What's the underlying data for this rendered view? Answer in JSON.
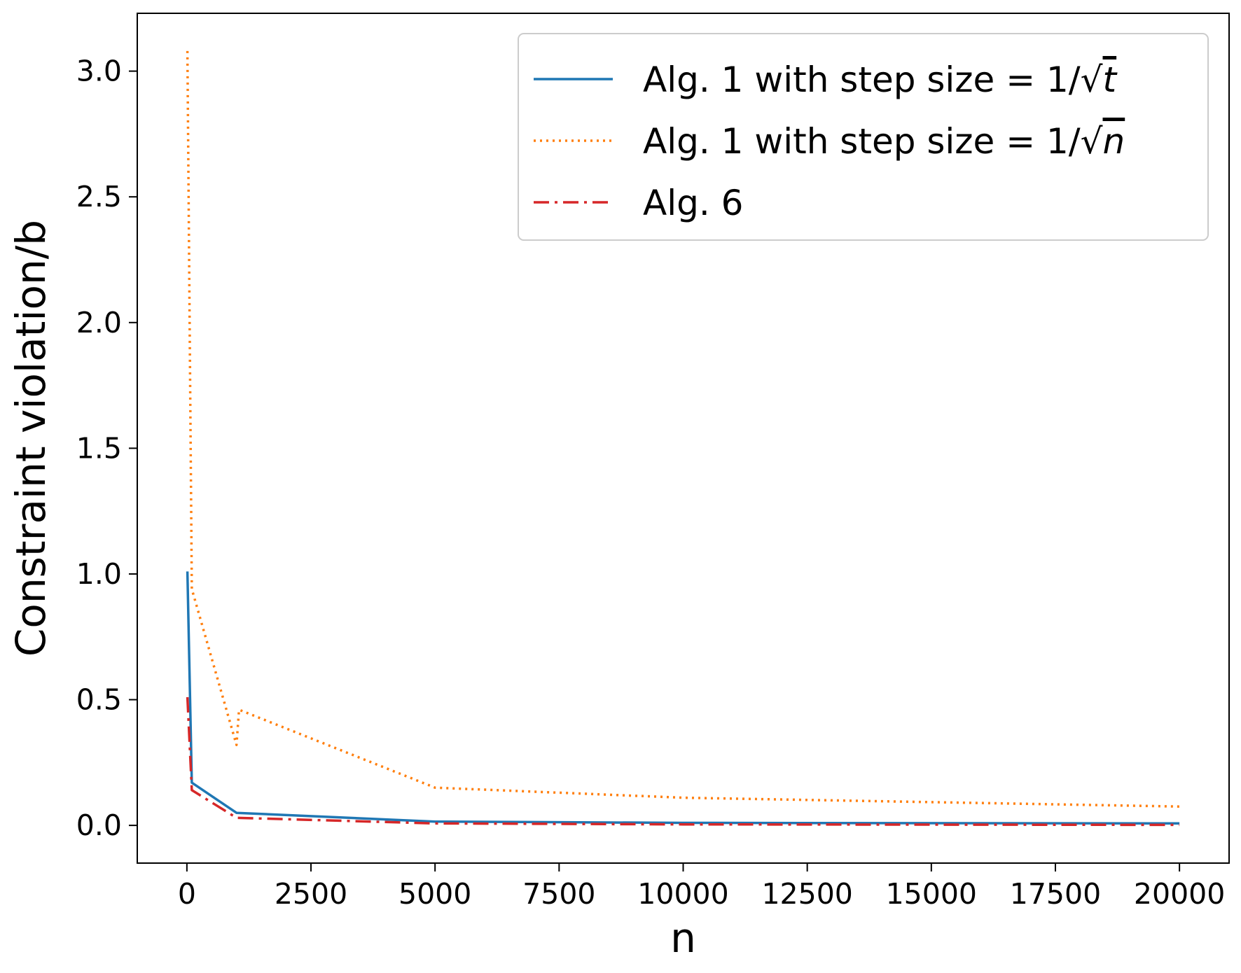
{
  "chart_data": {
    "type": "line",
    "xlabel": "n",
    "ylabel": "Constraint violation/b",
    "xlim": [
      -1000,
      21000
    ],
    "ylim": [
      -0.15,
      3.23
    ],
    "x_ticks": [
      0,
      2500,
      5000,
      7500,
      10000,
      12500,
      15000,
      17500,
      20000
    ],
    "x_tick_labels": [
      "0",
      "2500",
      "5000",
      "7500",
      "10000",
      "12500",
      "15000",
      "17500",
      "20000"
    ],
    "y_ticks": [
      0.0,
      0.5,
      1.0,
      1.5,
      2.0,
      2.5,
      3.0
    ],
    "y_tick_labels": [
      "0.0",
      "0.5",
      "1.0",
      "1.5",
      "2.0",
      "2.5",
      "3.0"
    ],
    "grid": false,
    "legend_position": "top-right",
    "series": [
      {
        "name": "Alg. 1 with step size = 1/√t",
        "legend_prefix": "Alg. 1 with step size = 1/√",
        "legend_var": "t",
        "color": "#1f77b4",
        "style": "solid",
        "x": [
          10,
          100,
          1000,
          5000,
          10000,
          20000
        ],
        "y": [
          1.01,
          0.17,
          0.05,
          0.015,
          0.01,
          0.008
        ]
      },
      {
        "name": "Alg. 1 with step size = 1/√n",
        "legend_prefix": "Alg. 1 with step size = 1/√",
        "legend_var": "n",
        "color": "#ff7f0e",
        "style": "dotted",
        "x": [
          10,
          100,
          1000,
          1050,
          5000,
          10000,
          20000
        ],
        "y": [
          3.08,
          0.94,
          0.32,
          0.46,
          0.15,
          0.11,
          0.075
        ]
      },
      {
        "name": "Alg. 6",
        "legend_prefix": "Alg. 6",
        "legend_var": "",
        "color": "#d62728",
        "style": "dashdot",
        "x": [
          10,
          100,
          1000,
          5000,
          10000,
          20000
        ],
        "y": [
          0.51,
          0.14,
          0.03,
          0.008,
          0.004,
          0.002
        ]
      }
    ]
  }
}
